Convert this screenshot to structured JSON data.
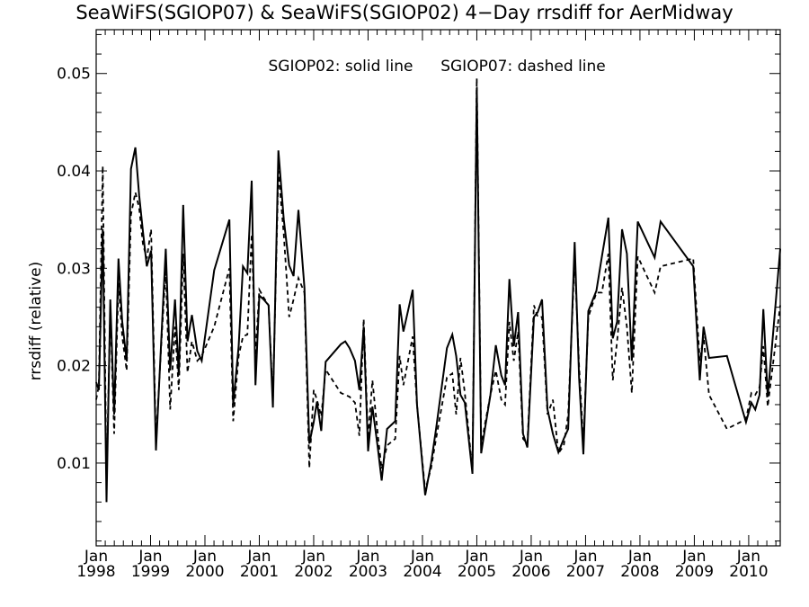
{
  "chart_data": {
    "type": "line",
    "title": "SeaWiFS(SGIOP07) & SeaWiFS(SGIOP02) 4−Day rrsdiff for AerMidway",
    "ylabel": "rrsdiff (relative)",
    "xlabel": "",
    "annotations": [
      "SGIOP02: solid line",
      "SGIOP07: dashed line"
    ],
    "xlim": [
      1998.0,
      2010.58
    ],
    "ylim": [
      0.0015,
      0.0545
    ],
    "grid": false,
    "legend": "none",
    "y_ticks": [
      {
        "value": 0.01,
        "label": "0.01"
      },
      {
        "value": 0.02,
        "label": "0.02"
      },
      {
        "value": 0.03,
        "label": "0.03"
      },
      {
        "value": 0.04,
        "label": "0.04"
      },
      {
        "value": 0.05,
        "label": "0.05"
      }
    ],
    "x_ticks": [
      {
        "value": 1998,
        "month": "Jan",
        "year": "1998"
      },
      {
        "value": 1999,
        "month": "Jan",
        "year": "1999"
      },
      {
        "value": 2000,
        "month": "Jan",
        "year": "2000"
      },
      {
        "value": 2001,
        "month": "Jan",
        "year": "2001"
      },
      {
        "value": 2002,
        "month": "Jan",
        "year": "2002"
      },
      {
        "value": 2003,
        "month": "Jan",
        "year": "2003"
      },
      {
        "value": 2004,
        "month": "Jan",
        "year": "2004"
      },
      {
        "value": 2005,
        "month": "Jan",
        "year": "2005"
      },
      {
        "value": 2006,
        "month": "Jan",
        "year": "2006"
      },
      {
        "value": 2007,
        "month": "Jan",
        "year": "2007"
      },
      {
        "value": 2008,
        "month": "Jan",
        "year": "2008"
      },
      {
        "value": 2009,
        "month": "Jan",
        "year": "2009"
      },
      {
        "value": 2010,
        "month": "Jan",
        "year": "2010"
      }
    ],
    "series": [
      {
        "name": "SGIOP02",
        "style": "solid",
        "color": "#000000",
        "points": [
          [
            1998.0,
            0.0183
          ],
          [
            1998.05,
            0.0175
          ],
          [
            1998.12,
            0.034
          ],
          [
            1998.19,
            0.006
          ],
          [
            1998.26,
            0.0268
          ],
          [
            1998.33,
            0.015
          ],
          [
            1998.41,
            0.031
          ],
          [
            1998.48,
            0.0245
          ],
          [
            1998.56,
            0.0205
          ],
          [
            1998.64,
            0.0402
          ],
          [
            1998.72,
            0.0424
          ],
          [
            1998.79,
            0.0375
          ],
          [
            1998.86,
            0.0338
          ],
          [
            1998.93,
            0.0302
          ],
          [
            1999.01,
            0.0318
          ],
          [
            1999.1,
            0.0113
          ],
          [
            1999.2,
            0.023
          ],
          [
            1999.28,
            0.032
          ],
          [
            1999.36,
            0.0195
          ],
          [
            1999.45,
            0.0268
          ],
          [
            1999.52,
            0.019
          ],
          [
            1999.6,
            0.0365
          ],
          [
            1999.68,
            0.0225
          ],
          [
            1999.76,
            0.0252
          ],
          [
            1999.86,
            0.0215
          ],
          [
            1999.94,
            0.0205
          ],
          [
            2000.17,
            0.0298
          ],
          [
            2000.45,
            0.035
          ],
          [
            2000.52,
            0.016
          ],
          [
            2000.62,
            0.022
          ],
          [
            2000.7,
            0.0302
          ],
          [
            2000.78,
            0.0295
          ],
          [
            2000.86,
            0.039
          ],
          [
            2000.93,
            0.018
          ],
          [
            2001.0,
            0.0272
          ],
          [
            2001.08,
            0.0268
          ],
          [
            2001.17,
            0.0262
          ],
          [
            2001.25,
            0.0157
          ],
          [
            2001.35,
            0.0421
          ],
          [
            2001.45,
            0.035
          ],
          [
            2001.55,
            0.0303
          ],
          [
            2001.63,
            0.0292
          ],
          [
            2001.72,
            0.036
          ],
          [
            2001.83,
            0.028
          ],
          [
            2001.92,
            0.012
          ],
          [
            2002.0,
            0.0142
          ],
          [
            2002.06,
            0.0163
          ],
          [
            2002.14,
            0.0133
          ],
          [
            2002.22,
            0.0204
          ],
          [
            2002.5,
            0.0222
          ],
          [
            2002.58,
            0.0225
          ],
          [
            2002.66,
            0.0218
          ],
          [
            2002.76,
            0.0205
          ],
          [
            2002.84,
            0.0175
          ],
          [
            2002.92,
            0.024
          ],
          [
            2003.0,
            0.0112
          ],
          [
            2003.08,
            0.0158
          ],
          [
            2003.18,
            0.0115
          ],
          [
            2003.25,
            0.0082
          ],
          [
            2003.35,
            0.0135
          ],
          [
            2003.5,
            0.0143
          ],
          [
            2003.58,
            0.0263
          ],
          [
            2003.65,
            0.0235
          ],
          [
            2003.82,
            0.0278
          ],
          [
            2003.9,
            0.016
          ],
          [
            2004.05,
            0.0067
          ],
          [
            2004.16,
            0.01
          ],
          [
            2004.25,
            0.0135
          ],
          [
            2004.45,
            0.0218
          ],
          [
            2004.55,
            0.0232
          ],
          [
            2004.62,
            0.021
          ],
          [
            2004.7,
            0.017
          ],
          [
            2004.78,
            0.0162
          ],
          [
            2004.92,
            0.0089
          ],
          [
            2005.0,
            0.0485
          ],
          [
            2005.08,
            0.011
          ],
          [
            2005.15,
            0.0135
          ],
          [
            2005.25,
            0.017
          ],
          [
            2005.35,
            0.0221
          ],
          [
            2005.45,
            0.019
          ],
          [
            2005.52,
            0.018
          ],
          [
            2005.6,
            0.0289
          ],
          [
            2005.68,
            0.022
          ],
          [
            2005.76,
            0.0255
          ],
          [
            2005.85,
            0.013
          ],
          [
            2005.93,
            0.0116
          ],
          [
            2006.05,
            0.025
          ],
          [
            2006.12,
            0.0255
          ],
          [
            2006.2,
            0.0268
          ],
          [
            2006.3,
            0.0155
          ],
          [
            2006.4,
            0.013
          ],
          [
            2006.5,
            0.0111
          ],
          [
            2006.6,
            0.0125
          ],
          [
            2006.68,
            0.0135
          ],
          [
            2006.8,
            0.0327
          ],
          [
            2006.88,
            0.0188
          ],
          [
            2006.96,
            0.0109
          ],
          [
            2007.05,
            0.0256
          ],
          [
            2007.2,
            0.0277
          ],
          [
            2007.3,
            0.0312
          ],
          [
            2007.42,
            0.0352
          ],
          [
            2007.5,
            0.0228
          ],
          [
            2007.58,
            0.0245
          ],
          [
            2007.67,
            0.034
          ],
          [
            2007.76,
            0.0315
          ],
          [
            2007.85,
            0.0205
          ],
          [
            2007.96,
            0.0348
          ],
          [
            2008.27,
            0.0311
          ],
          [
            2008.38,
            0.0348
          ],
          [
            2008.98,
            0.0302
          ],
          [
            2009.1,
            0.0185
          ],
          [
            2009.17,
            0.024
          ],
          [
            2009.27,
            0.0208
          ],
          [
            2009.6,
            0.021
          ],
          [
            2009.95,
            0.0142
          ],
          [
            2010.05,
            0.0162
          ],
          [
            2010.12,
            0.0155
          ],
          [
            2010.2,
            0.017
          ],
          [
            2010.27,
            0.0258
          ],
          [
            2010.35,
            0.0168
          ],
          [
            2010.58,
            0.032
          ]
        ]
      },
      {
        "name": "SGIOP07",
        "style": "dashed",
        "color": "#000000",
        "points": [
          [
            1998.0,
            0.0165
          ],
          [
            1998.05,
            0.018
          ],
          [
            1998.12,
            0.0405
          ],
          [
            1998.19,
            0.008
          ],
          [
            1998.26,
            0.026
          ],
          [
            1998.33,
            0.013
          ],
          [
            1998.41,
            0.0285
          ],
          [
            1998.48,
            0.023
          ],
          [
            1998.56,
            0.0195
          ],
          [
            1998.64,
            0.0355
          ],
          [
            1998.72,
            0.0378
          ],
          [
            1998.79,
            0.0362
          ],
          [
            1998.86,
            0.0325
          ],
          [
            1998.93,
            0.031
          ],
          [
            1999.01,
            0.034
          ],
          [
            1999.1,
            0.0122
          ],
          [
            1999.2,
            0.0225
          ],
          [
            1999.28,
            0.03
          ],
          [
            1999.36,
            0.0155
          ],
          [
            1999.45,
            0.024
          ],
          [
            1999.52,
            0.0175
          ],
          [
            1999.6,
            0.0315
          ],
          [
            1999.68,
            0.0193
          ],
          [
            1999.76,
            0.0225
          ],
          [
            1999.86,
            0.0205
          ],
          [
            1999.94,
            0.021
          ],
          [
            2000.17,
            0.024
          ],
          [
            2000.45,
            0.03
          ],
          [
            2000.52,
            0.0143
          ],
          [
            2000.62,
            0.021
          ],
          [
            2000.7,
            0.023
          ],
          [
            2000.78,
            0.0232
          ],
          [
            2000.86,
            0.0335
          ],
          [
            2000.93,
            0.021
          ],
          [
            2001.0,
            0.0278
          ],
          [
            2001.08,
            0.027
          ],
          [
            2001.17,
            0.0262
          ],
          [
            2001.25,
            0.0165
          ],
          [
            2001.35,
            0.04
          ],
          [
            2001.45,
            0.0335
          ],
          [
            2001.55,
            0.025
          ],
          [
            2001.63,
            0.0268
          ],
          [
            2001.72,
            0.029
          ],
          [
            2001.83,
            0.0275
          ],
          [
            2001.92,
            0.0095
          ],
          [
            2002.0,
            0.0175
          ],
          [
            2002.06,
            0.0165
          ],
          [
            2002.14,
            0.0148
          ],
          [
            2002.22,
            0.0196
          ],
          [
            2002.5,
            0.0172
          ],
          [
            2002.58,
            0.017
          ],
          [
            2002.66,
            0.0168
          ],
          [
            2002.76,
            0.0162
          ],
          [
            2002.84,
            0.0128
          ],
          [
            2002.92,
            0.0248
          ],
          [
            2003.0,
            0.0125
          ],
          [
            2003.08,
            0.0185
          ],
          [
            2003.18,
            0.0128
          ],
          [
            2003.25,
            0.0094
          ],
          [
            2003.35,
            0.0118
          ],
          [
            2003.5,
            0.0125
          ],
          [
            2003.58,
            0.021
          ],
          [
            2003.65,
            0.018
          ],
          [
            2003.82,
            0.023
          ],
          [
            2003.9,
            0.016
          ],
          [
            2004.05,
            0.0072
          ],
          [
            2004.16,
            0.0095
          ],
          [
            2004.25,
            0.0125
          ],
          [
            2004.45,
            0.0188
          ],
          [
            2004.55,
            0.0192
          ],
          [
            2004.62,
            0.015
          ],
          [
            2004.7,
            0.0208
          ],
          [
            2004.78,
            0.0172
          ],
          [
            2004.92,
            0.0092
          ],
          [
            2005.0,
            0.0495
          ],
          [
            2005.08,
            0.0118
          ],
          [
            2005.15,
            0.014
          ],
          [
            2005.25,
            0.017
          ],
          [
            2005.35,
            0.0195
          ],
          [
            2005.45,
            0.0165
          ],
          [
            2005.52,
            0.016
          ],
          [
            2005.6,
            0.0245
          ],
          [
            2005.68,
            0.0205
          ],
          [
            2005.76,
            0.0235
          ],
          [
            2005.85,
            0.0125
          ],
          [
            2005.93,
            0.012
          ],
          [
            2006.05,
            0.0262
          ],
          [
            2006.12,
            0.025
          ],
          [
            2006.2,
            0.025
          ],
          [
            2006.3,
            0.015
          ],
          [
            2006.4,
            0.0165
          ],
          [
            2006.5,
            0.011
          ],
          [
            2006.6,
            0.0118
          ],
          [
            2006.68,
            0.015
          ],
          [
            2006.8,
            0.031
          ],
          [
            2006.88,
            0.02
          ],
          [
            2006.96,
            0.012
          ],
          [
            2007.05,
            0.025
          ],
          [
            2007.2,
            0.0275
          ],
          [
            2007.3,
            0.0275
          ],
          [
            2007.42,
            0.0315
          ],
          [
            2007.5,
            0.0185
          ],
          [
            2007.58,
            0.0225
          ],
          [
            2007.67,
            0.028
          ],
          [
            2007.76,
            0.024
          ],
          [
            2007.85,
            0.0172
          ],
          [
            2007.96,
            0.0312
          ],
          [
            2008.27,
            0.0275
          ],
          [
            2008.38,
            0.0302
          ],
          [
            2008.98,
            0.031
          ],
          [
            2009.1,
            0.0205
          ],
          [
            2009.17,
            0.023
          ],
          [
            2009.27,
            0.017
          ],
          [
            2009.6,
            0.0135
          ],
          [
            2009.95,
            0.0145
          ],
          [
            2010.05,
            0.0172
          ],
          [
            2010.12,
            0.017
          ],
          [
            2010.2,
            0.0178
          ],
          [
            2010.27,
            0.022
          ],
          [
            2010.35,
            0.0158
          ],
          [
            2010.58,
            0.0262
          ]
        ]
      }
    ]
  }
}
